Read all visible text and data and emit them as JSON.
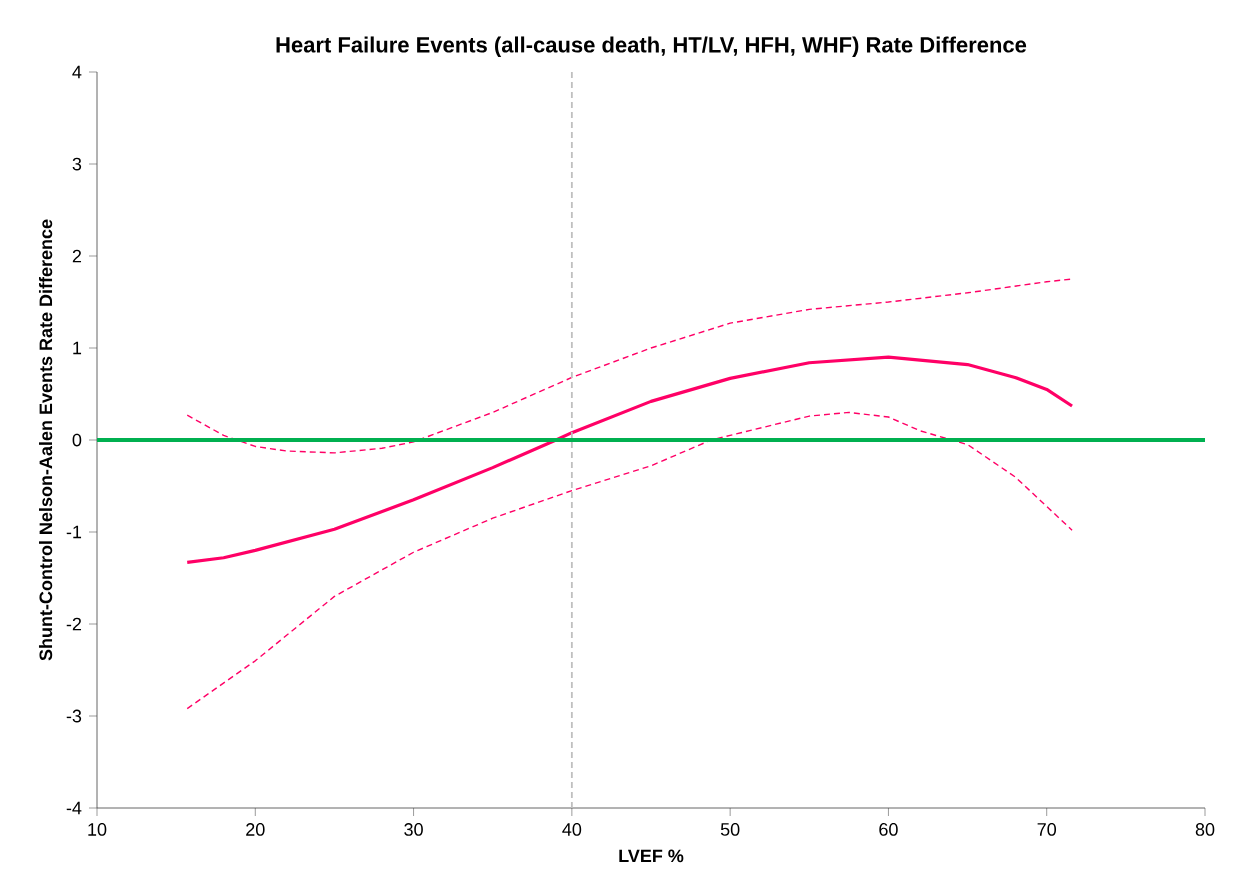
{
  "chart_data": {
    "type": "line",
    "title": "Heart Failure Events (all-cause death, HT/LV, HFH, WHF) Rate Difference",
    "xlabel": "LVEF %",
    "ylabel": "Shunt-Control Nelson-Aalen Events Rate Difference",
    "xlim": [
      10,
      80
    ],
    "ylim": [
      -4,
      4
    ],
    "xticks": [
      10,
      20,
      30,
      40,
      50,
      60,
      70,
      80
    ],
    "yticks": [
      -4,
      -3,
      -2,
      -1,
      0,
      1,
      2,
      3,
      4
    ],
    "grid": false,
    "legend": false,
    "marker": "none",
    "series": [
      {
        "color": "#ff0066",
        "line_style": "solid",
        "x": [
          15.7,
          18,
          20,
          25,
          30,
          35,
          39,
          40,
          45,
          50,
          55,
          60,
          65,
          68,
          70,
          71.6
        ],
        "values": [
          -1.33,
          -1.28,
          -1.2,
          -0.97,
          -0.65,
          -0.3,
          0.0,
          0.08,
          0.42,
          0.67,
          0.84,
          0.9,
          0.82,
          0.68,
          0.55,
          0.37
        ]
      },
      {
        "color": "#ff0066",
        "line_style": "dashed",
        "x": [
          15.7,
          18,
          20,
          22,
          25,
          28,
          30,
          35,
          40,
          45,
          50,
          55,
          60,
          65,
          70,
          71.6
        ],
        "values": [
          0.27,
          0.05,
          -0.07,
          -0.12,
          -0.14,
          -0.09,
          -0.02,
          0.3,
          0.68,
          1.0,
          1.27,
          1.42,
          1.5,
          1.6,
          1.72,
          1.75
        ]
      },
      {
        "color": "#ff0066",
        "line_style": "dashed",
        "x": [
          15.7,
          20,
          25,
          30,
          35,
          40,
          45,
          48.8,
          50,
          55,
          57.5,
          60,
          62,
          65,
          68,
          71.6
        ],
        "values": [
          -2.92,
          -2.4,
          -1.7,
          -1.22,
          -0.85,
          -0.55,
          -0.28,
          0.0,
          0.05,
          0.26,
          0.3,
          0.25,
          0.1,
          -0.05,
          -0.4,
          -0.98
        ]
      }
    ],
    "ref_lines": [
      {
        "axis": "y",
        "value": 0,
        "color": "#00b050",
        "line_style": "solid"
      },
      {
        "axis": "x",
        "value": 40,
        "color": "#bfbfbf",
        "line_style": "dashed"
      }
    ]
  }
}
